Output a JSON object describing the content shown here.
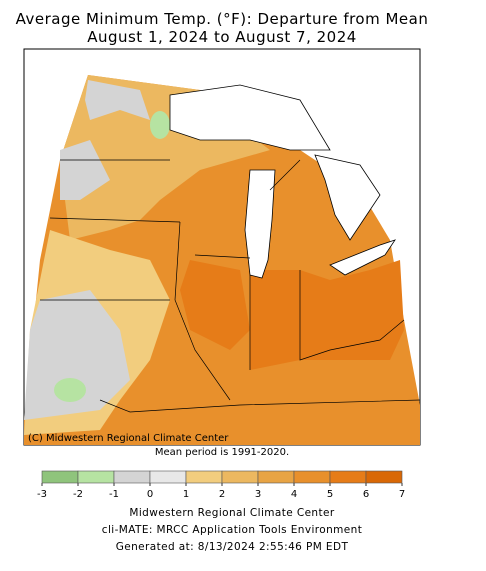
{
  "title": [
    "Average Minimum Temp. (°F): Departure from Mean",
    "August 1, 2024 to August 7, 2024"
  ],
  "map": {
    "credit": "(C) Midwestern Regional Climate Center",
    "note": "Mean period is 1991-2020."
  },
  "legend": {
    "ticks": [
      -3,
      -2,
      -1,
      0,
      1,
      2,
      3,
      4,
      5,
      6,
      7
    ],
    "colors": [
      "#8fc47c",
      "#b6e3a2",
      "#d4d4d4",
      "#e8e8e8",
      "#f2cd7e",
      "#ecb860",
      "#e8a444",
      "#e8902c",
      "#e67c18",
      "#d96806"
    ]
  },
  "footer": [
    "Midwestern Regional Climate Center",
    "cli-MATE: MRCC Application Tools Environment",
    "Generated at: 8/13/2024 2:55:46 PM EDT"
  ]
}
